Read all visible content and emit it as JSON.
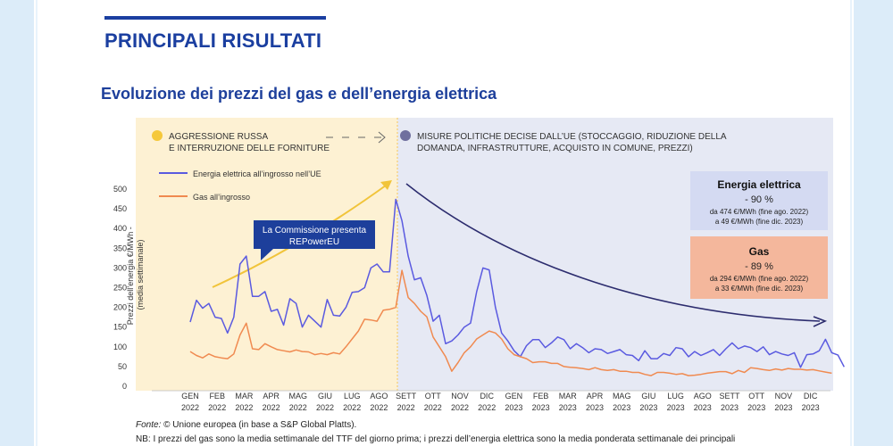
{
  "header": {
    "section_title": "PRINCIPALI RISULTATI",
    "subtitle_parts": [
      "Evoluzione dei prezzi del ",
      "gas",
      " e ",
      "dell’",
      "energia elettrica"
    ]
  },
  "phases": {
    "first": {
      "line1": "AGGRESSIONE RUSSA",
      "line2": "E INTERRUZIONE DELLE FORNITURE",
      "dot_color": "#f5c83a",
      "bg_color": "#fdf1d3"
    },
    "second": {
      "line1": "MISURE POLITICHE DECISE DALL’UE (STOCCAGGIO, RIDUZIONE DELLA",
      "line2": "DOMANDA, INFRASTRUTTURE, ACQUISTO IN COMUNE, PREZZI)",
      "dot_color": "#6f6f9e",
      "bg_color": "#e6e9f4"
    }
  },
  "callout": {
    "line1": "La Commissione presenta",
    "line2": "REPowerEU",
    "color": "#1d3f9b"
  },
  "boxes": {
    "electricity": {
      "title": "Energia elettrica",
      "pct": "- 90 %",
      "line1": "da 474 €/MWh (fine ago. 2022)",
      "line2": "a 49 €/MWh (fine dic. 2023)",
      "color": "#d4daf2"
    },
    "gas": {
      "title": "Gas",
      "pct": "- 89 %",
      "line1": "da 294 €/MWh (fine ago. 2022)",
      "line2": "a 33 €/MWh (fine dic. 2023)",
      "color": "#f4b79c"
    }
  },
  "footer": {
    "source_label": "Fonte:",
    "source_text": " © Unione europea (in base a S&P Global Platts).",
    "note": "NB: I prezzi del gas sono la media settimanale del TTF del giorno prima; i prezzi dell’energia elettrica sono la media ponderata settimanale dei principali"
  },
  "chart_data": {
    "type": "line",
    "ylabel": "Prezzi dell’energia €/MWh - (media settimanale)",
    "ylim": [
      0,
      500
    ],
    "y_ticks": [
      0,
      50,
      100,
      150,
      200,
      250,
      300,
      350,
      400,
      450,
      500
    ],
    "x_ticks": [
      {
        "m": "GEN",
        "y": "2022"
      },
      {
        "m": "FEB",
        "y": "2022"
      },
      {
        "m": "MAR",
        "y": "2022"
      },
      {
        "m": "APR",
        "y": "2022"
      },
      {
        "m": "MAG",
        "y": "2022"
      },
      {
        "m": "GIU",
        "y": "2022"
      },
      {
        "m": "LUG",
        "y": "2022"
      },
      {
        "m": "AGO",
        "y": "2022"
      },
      {
        "m": "SETT",
        "y": "2022"
      },
      {
        "m": "OTT",
        "y": "2022"
      },
      {
        "m": "NOV",
        "y": "2022"
      },
      {
        "m": "DIC",
        "y": "2022"
      },
      {
        "m": "GEN",
        "y": "2023"
      },
      {
        "m": "FEB",
        "y": "2023"
      },
      {
        "m": "MAR",
        "y": "2023"
      },
      {
        "m": "APR",
        "y": "2023"
      },
      {
        "m": "MAG",
        "y": "2023"
      },
      {
        "m": "GIU",
        "y": "2023"
      },
      {
        "m": "LUG",
        "y": "2023"
      },
      {
        "m": "AGO",
        "y": "2023"
      },
      {
        "m": "SETT",
        "y": "2023"
      },
      {
        "m": "OTT",
        "y": "2023"
      },
      {
        "m": "NOV",
        "y": "2023"
      },
      {
        "m": "DIC",
        "y": "2023"
      }
    ],
    "weeks_per_month": 4.33,
    "series": [
      {
        "name": "Energia elettrica all’ingrosso nell’UE",
        "color": "#5a5ae0",
        "values": [
          163,
          218,
          198,
          210,
          175,
          172,
          135,
          175,
          310,
          330,
          228,
          228,
          240,
          190,
          195,
          155,
          222,
          210,
          150,
          180,
          165,
          150,
          220,
          180,
          178,
          200,
          238,
          240,
          250,
          300,
          310,
          290,
          290,
          474,
          420,
          330,
          270,
          275,
          230,
          165,
          180,
          108,
          115,
          130,
          150,
          160,
          240,
          300,
          295,
          200,
          135,
          115,
          90,
          75,
          103,
          118,
          118,
          98,
          110,
          125,
          118,
          95,
          108,
          98,
          85,
          95,
          93,
          83,
          88,
          93,
          80,
          78,
          65,
          90,
          70,
          70,
          83,
          78,
          98,
          95,
          75,
          88,
          78,
          85,
          93,
          78,
          95,
          110,
          95,
          102,
          98,
          88,
          100,
          80,
          88,
          82,
          78,
          85,
          48,
          80,
          82,
          90,
          119,
          85,
          79,
          49
        ]
      },
      {
        "name": "Gas all’ingrosso",
        "color": "#f08a50",
        "values": [
          88,
          78,
          72,
          82,
          75,
          72,
          70,
          82,
          130,
          160,
          95,
          93,
          108,
          100,
          93,
          90,
          87,
          92,
          88,
          87,
          80,
          83,
          80,
          85,
          82,
          100,
          120,
          140,
          170,
          168,
          165,
          193,
          195,
          200,
          294,
          225,
          210,
          190,
          176,
          125,
          100,
          75,
          38,
          60,
          85,
          100,
          120,
          130,
          140,
          135,
          120,
          95,
          80,
          75,
          70,
          60,
          62,
          62,
          58,
          58,
          50,
          48,
          47,
          45,
          42,
          47,
          42,
          40,
          42,
          38,
          38,
          35,
          35,
          30,
          27,
          35,
          35,
          33,
          30,
          32,
          27,
          28,
          30,
          33,
          35,
          37,
          37,
          32,
          40,
          35,
          47,
          45,
          42,
          40,
          44,
          41,
          45,
          43,
          43,
          41,
          42,
          39,
          36,
          33
        ]
      }
    ],
    "annotations": {
      "legend_position": "top-left",
      "grid": false
    }
  }
}
